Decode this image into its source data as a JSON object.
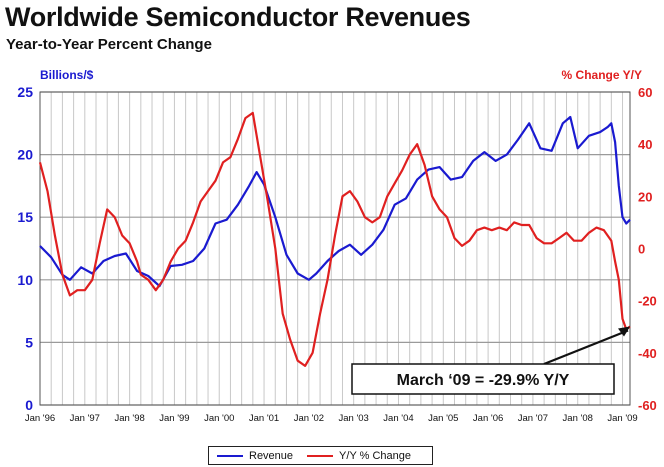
{
  "title": "Worldwide Semiconductor Revenues",
  "subtitle": "Year-to-Year Percent Change",
  "chart_data": {
    "type": "line",
    "title": "Worldwide Semiconductor Revenues",
    "subtitle": "Year-to-Year Percent Change",
    "ylabel_left": "Billions/$",
    "ylabel_right": "% Change Y/Y",
    "ylim_left": [
      0,
      25
    ],
    "ylim_right": [
      -60,
      60
    ],
    "yticks_left": [
      "0",
      "5",
      "10",
      "15",
      "20",
      "25"
    ],
    "yticks_right": [
      "-60",
      "-40",
      "-20",
      "0",
      "20",
      "40",
      "60"
    ],
    "xticks": [
      "Jan '96",
      "Jan '97",
      "Jan '98",
      "Jan '99",
      "Jan '00",
      "Jan '01",
      "Jan '02",
      "Jan '03",
      "Jan '04",
      "Jan '05",
      "Jan '06",
      "Jan '07",
      "Jan '08",
      "Jan '09"
    ],
    "x_start": "Jan 1996",
    "x_end": "Mar 2009",
    "grid": true,
    "legend_position": "bottom",
    "annotation": "March ‘09 = -29.9% Y/Y",
    "series": [
      {
        "name": "Revenue",
        "axis": "left",
        "color": "#1a1ad0",
        "points": [
          [
            "Jan 1996",
            12.7
          ],
          [
            "Apr 1996",
            11.8
          ],
          [
            "Jul 1996",
            10.4
          ],
          [
            "Sep 1996",
            10.0
          ],
          [
            "Dec 1996",
            11.0
          ],
          [
            "Mar 1997",
            10.5
          ],
          [
            "Jun 1997",
            11.5
          ],
          [
            "Sep 1997",
            11.9
          ],
          [
            "Dec 1997",
            12.1
          ],
          [
            "Mar 1998",
            10.7
          ],
          [
            "Jun 1998",
            10.3
          ],
          [
            "Sep 1998",
            9.5
          ],
          [
            "Dec 1998",
            11.1
          ],
          [
            "Mar 1999",
            11.2
          ],
          [
            "Jun 1999",
            11.5
          ],
          [
            "Sep 1999",
            12.5
          ],
          [
            "Dec 1999",
            14.5
          ],
          [
            "Mar 2000",
            14.8
          ],
          [
            "Jun 2000",
            16.0
          ],
          [
            "Sep 2000",
            17.5
          ],
          [
            "Nov 2000",
            18.6
          ],
          [
            "Jan 2001",
            17.6
          ],
          [
            "Apr 2001",
            15.0
          ],
          [
            "Jul 2001",
            12.0
          ],
          [
            "Oct 2001",
            10.5
          ],
          [
            "Jan 2002",
            10.0
          ],
          [
            "Mar 2002",
            10.5
          ],
          [
            "Jun 2002",
            11.5
          ],
          [
            "Sep 2002",
            12.3
          ],
          [
            "Dec 2002",
            12.8
          ],
          [
            "Mar 2003",
            12.0
          ],
          [
            "Jun 2003",
            12.8
          ],
          [
            "Sep 2003",
            14.0
          ],
          [
            "Dec 2003",
            16.0
          ],
          [
            "Mar 2004",
            16.5
          ],
          [
            "Jun 2004",
            18.0
          ],
          [
            "Sep 2004",
            18.8
          ],
          [
            "Dec 2004",
            19.0
          ],
          [
            "Mar 2005",
            18.0
          ],
          [
            "Jun 2005",
            18.2
          ],
          [
            "Sep 2005",
            19.5
          ],
          [
            "Dec 2005",
            20.2
          ],
          [
            "Mar 2006",
            19.5
          ],
          [
            "Jun 2006",
            20.0
          ],
          [
            "Sep 2006",
            21.2
          ],
          [
            "Dec 2006",
            22.5
          ],
          [
            "Mar 2007",
            20.5
          ],
          [
            "Jun 2007",
            20.3
          ],
          [
            "Sep 2007",
            22.5
          ],
          [
            "Nov 2007",
            23.0
          ],
          [
            "Jan 2008",
            20.5
          ],
          [
            "Apr 2008",
            21.5
          ],
          [
            "Jul 2008",
            21.8
          ],
          [
            "Sep 2008",
            22.2
          ],
          [
            "Oct 2008",
            22.5
          ],
          [
            "Nov 2008",
            21.0
          ],
          [
            "Dec 2008",
            17.5
          ],
          [
            "Jan 2009",
            15.0
          ],
          [
            "Feb 2009",
            14.5
          ],
          [
            "Mar 2009",
            14.8
          ]
        ]
      },
      {
        "name": "Y/Y % Change",
        "axis": "right",
        "color": "#e02020",
        "points": [
          [
            "Jan 1996",
            33
          ],
          [
            "Mar 1996",
            22
          ],
          [
            "May 1996",
            5
          ],
          [
            "Jul 1996",
            -10
          ],
          [
            "Sep 1996",
            -18
          ],
          [
            "Nov 1996",
            -16
          ],
          [
            "Jan 1997",
            -16
          ],
          [
            "Mar 1997",
            -12
          ],
          [
            "May 1997",
            2
          ],
          [
            "Jul 1997",
            15
          ],
          [
            "Sep 1997",
            12
          ],
          [
            "Nov 1997",
            5
          ],
          [
            "Jan 1998",
            2
          ],
          [
            "Mar 1998",
            -5
          ],
          [
            "Apr 1998",
            -10
          ],
          [
            "Jun 1998",
            -12
          ],
          [
            "Aug 1998",
            -16
          ],
          [
            "Oct 1998",
            -12
          ],
          [
            "Dec 1998",
            -5
          ],
          [
            "Feb 1999",
            0
          ],
          [
            "Apr 1999",
            3
          ],
          [
            "Jun 1999",
            10
          ],
          [
            "Aug 1999",
            18
          ],
          [
            "Oct 1999",
            22
          ],
          [
            "Dec 1999",
            26
          ],
          [
            "Feb 2000",
            33
          ],
          [
            "Apr 2000",
            35
          ],
          [
            "Jun 2000",
            42
          ],
          [
            "Aug 2000",
            50
          ],
          [
            "Oct 2000",
            52
          ],
          [
            "Dec 2000",
            35
          ],
          [
            "Feb 2001",
            18
          ],
          [
            "Apr 2001",
            0
          ],
          [
            "Jun 2001",
            -25
          ],
          [
            "Aug 2001",
            -35
          ],
          [
            "Oct 2001",
            -43
          ],
          [
            "Dec 2001",
            -45
          ],
          [
            "Feb 2002",
            -40
          ],
          [
            "Apr 2002",
            -25
          ],
          [
            "Jun 2002",
            -12
          ],
          [
            "Aug 2002",
            5
          ],
          [
            "Oct 2002",
            20
          ],
          [
            "Dec 2002",
            22
          ],
          [
            "Feb 2003",
            18
          ],
          [
            "Apr 2003",
            12
          ],
          [
            "Jun 2003",
            10
          ],
          [
            "Aug 2003",
            12
          ],
          [
            "Oct 2003",
            20
          ],
          [
            "Dec 2003",
            25
          ],
          [
            "Feb 2004",
            30
          ],
          [
            "Apr 2004",
            36
          ],
          [
            "Jun 2004",
            40
          ],
          [
            "Aug 2004",
            32
          ],
          [
            "Oct 2004",
            20
          ],
          [
            "Dec 2004",
            15
          ],
          [
            "Feb 2005",
            12
          ],
          [
            "Apr 2005",
            4
          ],
          [
            "Jun 2005",
            1
          ],
          [
            "Aug 2005",
            3
          ],
          [
            "Oct 2005",
            7
          ],
          [
            "Dec 2005",
            8
          ],
          [
            "Feb 2006",
            7
          ],
          [
            "Apr 2006",
            8
          ],
          [
            "Jun 2006",
            7
          ],
          [
            "Aug 2006",
            10
          ],
          [
            "Oct 2006",
            9
          ],
          [
            "Dec 2006",
            9
          ],
          [
            "Feb 2007",
            4
          ],
          [
            "Apr 2007",
            2
          ],
          [
            "Jun 2007",
            2
          ],
          [
            "Aug 2007",
            4
          ],
          [
            "Oct 2007",
            6
          ],
          [
            "Dec 2007",
            3
          ],
          [
            "Feb 2008",
            3
          ],
          [
            "Apr 2008",
            6
          ],
          [
            "Jun 2008",
            8
          ],
          [
            "Aug 2008",
            7
          ],
          [
            "Oct 2008",
            3
          ],
          [
            "Nov 2008",
            -5
          ],
          [
            "Dec 2008",
            -12
          ],
          [
            "Jan 2009",
            -27
          ],
          [
            "Feb 2009",
            -31
          ],
          [
            "Mar 2009",
            -29.9
          ]
        ]
      }
    ]
  }
}
